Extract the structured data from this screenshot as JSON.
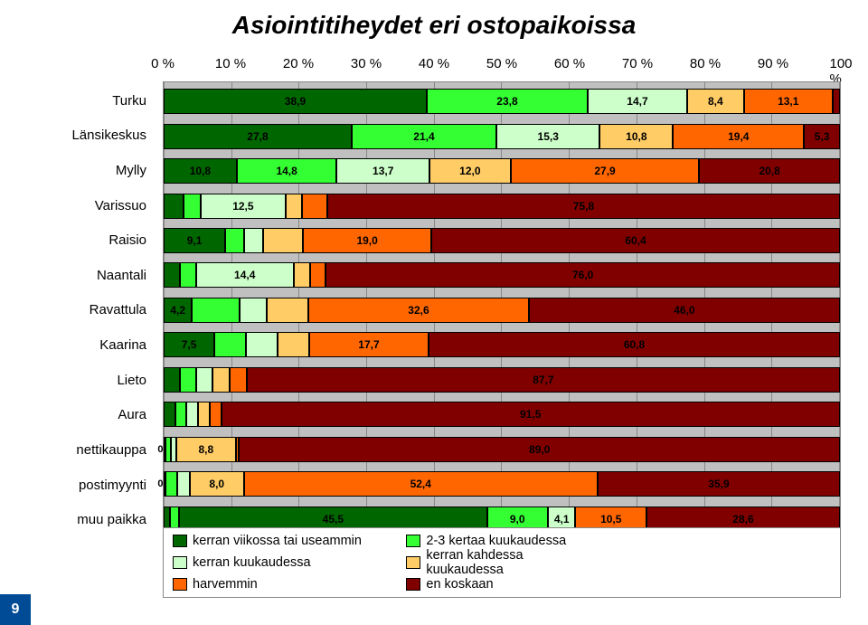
{
  "title": "Asiointitiheydet eri ostopaikoissa",
  "page_number": "9",
  "type": "stacked-bar-horizontal",
  "xlim": [
    0,
    100
  ],
  "xtick_step": 10,
  "xtick_format": "{v} %",
  "xticks": [
    "0 %",
    "10 %",
    "20 %",
    "30 %",
    "40 %",
    "50 %",
    "60 %",
    "70 %",
    "80 %",
    "90 %",
    "100 %"
  ],
  "background_color": "#c0c0c0",
  "grid_color": "#888888",
  "series": [
    {
      "label": "kerran viikossa tai useammin",
      "color": "#006600"
    },
    {
      "label": "2-3 kertaa kuukaudessa",
      "color": "#33ff33"
    },
    {
      "label": "kerran kuukaudessa",
      "color": "#ccffc9"
    },
    {
      "label": "kerran kahdessa kuukaudessa",
      "color": "#ffcc66"
    },
    {
      "label": "harvemmin",
      "color": "#ff6600"
    },
    {
      "label": "en koskaan",
      "color": "#800000"
    }
  ],
  "categories": [
    {
      "name": "Turku",
      "labels": [
        "38,9",
        "23,8",
        "14,7",
        "8,4",
        "13,1",
        ""
      ],
      "values": [
        38.9,
        23.8,
        14.7,
        8.4,
        13.1,
        1.1
      ]
    },
    {
      "name": "Länsikeskus",
      "labels": [
        "27,8",
        "21,4",
        "15,3",
        "10,8",
        "19,4",
        "5,3"
      ],
      "values": [
        27.8,
        21.4,
        15.3,
        10.8,
        19.4,
        5.3
      ]
    },
    {
      "name": "Mylly",
      "labels": [
        "10,8",
        "14,8",
        "13,7",
        "12,0",
        "27,9",
        "20,8"
      ],
      "values": [
        10.8,
        14.8,
        13.7,
        12.0,
        27.9,
        20.8
      ]
    },
    {
      "name": "Varissuo",
      "labels": [
        "",
        "",
        "12,5",
        "",
        "",
        "75,8"
      ],
      "values": [
        3.0,
        2.5,
        12.5,
        2.5,
        3.7,
        75.8
      ]
    },
    {
      "name": "Raisio",
      "labels": [
        "9,1",
        "",
        "",
        "",
        "19,0",
        "60,4"
      ],
      "values": [
        9.1,
        2.8,
        2.8,
        5.9,
        19.0,
        60.4
      ]
    },
    {
      "name": "Naantali",
      "labels": [
        "",
        "",
        "14,4",
        "",
        "",
        "76,0"
      ],
      "values": [
        2.4,
        2.4,
        14.4,
        2.4,
        2.4,
        76.0
      ]
    },
    {
      "name": "Ravattula",
      "labels": [
        "4,2",
        "",
        "",
        "",
        "32,6",
        "46,0"
      ],
      "values": [
        4.2,
        7.0,
        4.0,
        6.2,
        32.6,
        46.0
      ]
    },
    {
      "name": "Kaarina",
      "labels": [
        "7,5",
        "",
        "",
        "",
        "17,7",
        "60,8"
      ],
      "values": [
        7.5,
        4.7,
        4.7,
        4.6,
        17.7,
        60.8
      ]
    },
    {
      "name": "Lieto",
      "labels": [
        "",
        "",
        "",
        "",
        "",
        "87,7"
      ],
      "values": [
        2.4,
        2.4,
        2.4,
        2.6,
        2.5,
        87.7
      ]
    },
    {
      "name": "Aura",
      "labels": [
        "",
        "",
        "",
        "",
        "",
        "91,5"
      ],
      "values": [
        1.7,
        1.7,
        1.7,
        1.7,
        1.7,
        91.5
      ]
    },
    {
      "name": "nettikauppa",
      "labels": [
        "0,1",
        "",
        "",
        "8,8",
        "",
        "89,0"
      ],
      "values": [
        0.1,
        0.8,
        0.8,
        8.8,
        0.5,
        89.0
      ]
    },
    {
      "name": "postimyynti",
      "labels": [
        "0,1",
        "",
        "",
        "8,0",
        "52,4",
        "35,9"
      ],
      "values": [
        0.1,
        1.8,
        1.8,
        8.0,
        52.4,
        35.9
      ]
    },
    {
      "name": "muu paikka",
      "labels": [
        "",
        "",
        "45,5",
        "9,0",
        "4,1",
        "10,5",
        "28,6"
      ],
      "values": [
        1.0,
        1.3,
        45.5,
        9.0,
        4.1,
        10.5,
        28.6
      ],
      "colors_override": [
        "#006600",
        "#33ff33",
        "#006600",
        "#33ff33",
        "#ccffc9",
        "#ff6600",
        "#800000"
      ]
    }
  ],
  "label_fontsize": 12,
  "axis_fontsize": 15,
  "title_fontsize": 28
}
